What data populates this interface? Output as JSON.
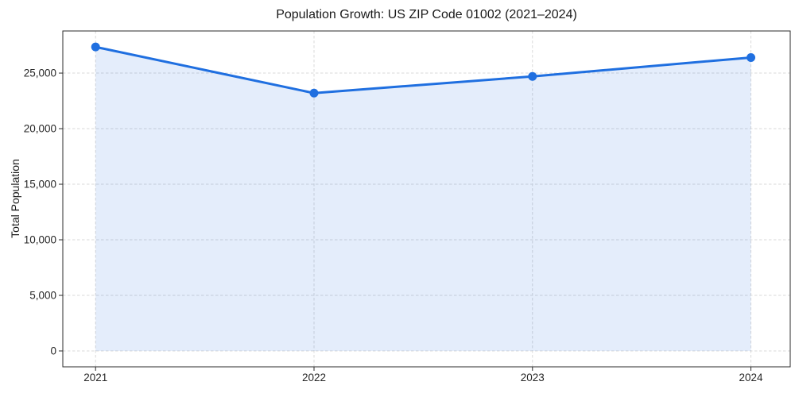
{
  "chart_data": {
    "type": "area",
    "title": "Population Growth: US ZIP Code 01002 (2021–2024)",
    "xlabel": "",
    "ylabel": "Total Population",
    "categories": [
      "2021",
      "2022",
      "2023",
      "2024"
    ],
    "series": [
      {
        "name": "Total Population",
        "values": [
          27350,
          23200,
          24700,
          26400
        ]
      }
    ],
    "yticks": [
      0,
      5000,
      10000,
      15000,
      20000,
      25000
    ],
    "ytick_labels": [
      "0",
      "5,000",
      "10,000",
      "15,000",
      "20,000",
      "25,000"
    ],
    "ylim": [
      -1430,
      28790
    ],
    "xlim": [
      -0.15,
      3.18
    ],
    "fill_baseline": 0,
    "grid": true,
    "grid_style": "dashed",
    "legend": "none",
    "marker": "circle",
    "line_width": 3,
    "marker_radius": 5.5,
    "colors": {
      "line": "#1f6fe0",
      "marker": "#1f6fe0",
      "fill": "rgba(31,111,224,0.12)",
      "grid": "#d9d9d9",
      "spine": "#2b2b2b",
      "tick": "#2b2b2b",
      "text": "#262626",
      "background": "#ffffff"
    }
  }
}
